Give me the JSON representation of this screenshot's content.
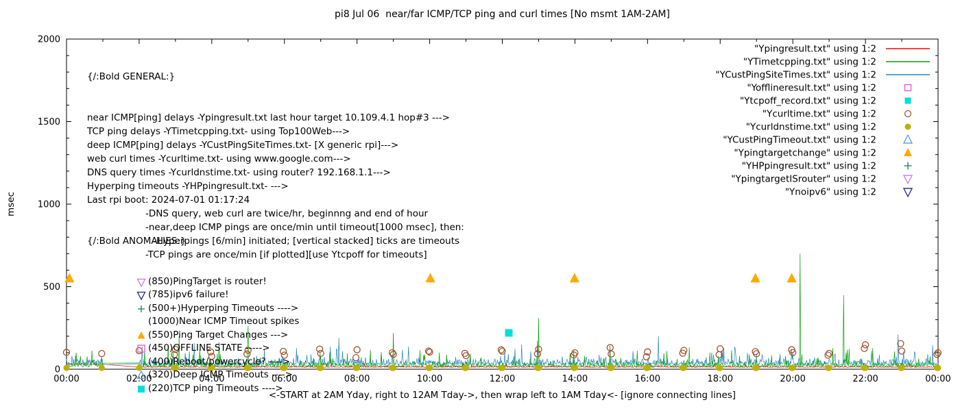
{
  "title": "pi8 Jul 06  near/far ICMP/TCP ping and curl times [No msmt 1AM-2AM]",
  "ylabel": "msec",
  "xlabel": "<-START at 2AM Yday, right to 12AM Tday->, then wrap left to 1AM Tday<- [ignore connecting lines]",
  "general": {
    "heading": "{/:Bold GENERAL:}",
    "lines": [
      {
        "text": "near ICMP[ping] delays -Ypingresult.txt last hour target 10.109.4.1 hop#3 --->",
        "indent": 0
      },
      {
        "text": "TCP ping delays -YTimetcpping.txt- using Top100Web--->",
        "indent": 0
      },
      {
        "text": "deep ICMP[ping] delays -YCustPingSiteTimes.txt- [X generic rpi]--->",
        "indent": 0
      },
      {
        "text": "web curl times -Ycurltime.txt- using www.google.com--->",
        "indent": 0
      },
      {
        "text": "DNS query times -Ycurldnstime.txt- using router? 192.168.1.1--->",
        "indent": 0
      },
      {
        "text": "Hyperping timeouts -YHPpingresult.txt- --->",
        "indent": 0
      },
      {
        "text": "Last rpi boot: 2024-07-01 01:17:24",
        "indent": 0
      },
      {
        "text": "-DNS query, web curl are twice/hr, beginnng and end of hour",
        "indent": 1
      },
      {
        "text": "-near,deep ICMP pings are once/min until timeout[1000 msec], then:",
        "indent": 1
      },
      {
        "text": "-Hyperpings [6/min] initiated; [vertical stacked] ticks are timeouts",
        "indent": 2
      },
      {
        "text": "-TCP pings are once/min [if plotted][use Ytcpoff for timeouts]",
        "indent": 1
      }
    ]
  },
  "anomalies": {
    "heading": "{/:Bold ANOMALIES:}",
    "items": [
      {
        "symbol": "triangle-down-open",
        "color": "#c77ae0",
        "text": "(850)PingTarget is router!"
      },
      {
        "symbol": "triangle-down-open",
        "color": "#202090",
        "text": "(785)ipv6 failure!"
      },
      {
        "symbol": "plus",
        "color": "#128060",
        "text": "(500+)Hyperping Timeouts ---->"
      },
      {
        "symbol": null,
        "color": null,
        "text": "(1000)Near ICMP Timeout spikes"
      },
      {
        "symbol": "triangle-up-filled",
        "color": "#ffaa00",
        "text": "(550)Ping Target Changes --->"
      },
      {
        "symbol": "square-open",
        "color": "#e54de5",
        "text": "(450)OFFLINE STATE ----->"
      },
      {
        "symbol": null,
        "color": null,
        "text": "(400)Reboot/powercycle? ---->"
      },
      {
        "symbol": "triangle-up-open",
        "color": "#5b9bd5",
        "text": "(320)Deep ICMP Timeouts ---->"
      },
      {
        "symbol": "square-filled",
        "color": "#00dede",
        "text": "(220)TCP ping Timeouts ---->"
      }
    ]
  },
  "legend": {
    "items": [
      {
        "label": "\"Ypingresult.txt\" using 1:2",
        "symbol": "line",
        "color": "#ff0000"
      },
      {
        "label": "\"YTimetcpping.txt\" using 1:2",
        "symbol": "line",
        "color": "#00a000"
      },
      {
        "label": "\"YCustPingSiteTimes.txt\" using 1:2",
        "symbol": "line",
        "color": "#2383c4"
      },
      {
        "label": "\"Yofflineresult.txt\" using 1:2",
        "symbol": "square-open",
        "color": "#e54de5",
        "size": 9
      },
      {
        "label": "\"Ytcpoff_record.txt\" using 1:2",
        "symbol": "square-filled",
        "color": "#00dede",
        "size": 9
      },
      {
        "label": "\"Ycurltime.txt\" using 1:2",
        "symbol": "circle-open",
        "color": "#a0522d",
        "size": 9
      },
      {
        "label": "\"Ycurldnstime.txt\" using 1:2",
        "symbol": "circle-filled",
        "color": "#bdb000",
        "size": 9
      },
      {
        "label": "\"YCustPingTimeout.txt\" using 1:2",
        "symbol": "triangle-up-open",
        "color": "#5b9bd5",
        "size": 11
      },
      {
        "label": "\"Ypingtargetchange\" using 1:2",
        "symbol": "triangle-up-filled",
        "color": "#ffaa00",
        "size": 11
      },
      {
        "label": "\"YHPpingresult.txt\" using 1:2",
        "symbol": "plus",
        "color": "#128060",
        "size": 11
      },
      {
        "label": "\"YpingtargetISrouter\" using 1:2",
        "symbol": "triangle-down-open",
        "color": "#c77ae0",
        "size": 11
      },
      {
        "label": "\"Ynoipv6\" using 1:2",
        "symbol": "triangle-down-open",
        "color": "#202090",
        "size": 11
      }
    ]
  },
  "chart_data": {
    "type": "line",
    "x_axis": {
      "ticks_major": [
        "00:00",
        "02:00",
        "04:00",
        "06:00",
        "08:00",
        "10:00",
        "12:00",
        "14:00",
        "16:00",
        "18:00",
        "20:00",
        "22:00",
        "00:00"
      ],
      "hours_span": 24,
      "minor_every_hours": 1
    },
    "y_axis": {
      "label": "msec",
      "ticks_major": [
        0,
        500,
        1000,
        1500,
        2000
      ],
      "minor_step": 100,
      "range": [
        0,
        2000
      ]
    },
    "gap_hours": [
      1,
      2
    ],
    "series": [
      {
        "name": "Ypingresult.txt",
        "color": "#ff0000",
        "base": 11,
        "noise": 8,
        "spike_prob": 0.03,
        "spike_max": 35,
        "seed": 101,
        "flat_until": 1,
        "flat_value": 30
      },
      {
        "name": "YCustPingSiteTimes.txt",
        "color": "#2383c4",
        "base": 24,
        "noise": 40,
        "spike_prob": 0.14,
        "spike_max": 130,
        "seed": 303,
        "big_spikes": [
          [
            7.5,
            190
          ],
          [
            16.3,
            200
          ],
          [
            22.9,
            210
          ]
        ]
      },
      {
        "name": "YTimetcpping.txt",
        "color": "#00a000",
        "base": 13,
        "noise": 28,
        "spike_prob": 0.12,
        "spike_max": 150,
        "seed": 202,
        "big_spikes": [
          [
            3.1,
            200
          ],
          [
            5.0,
            260
          ],
          [
            9.0,
            220
          ],
          [
            13.0,
            310
          ],
          [
            20.2,
            700
          ],
          [
            21.4,
            450
          ]
        ]
      }
    ],
    "markers": [
      {
        "name": "Ycurldnstime-dots",
        "shape": "circle-filled",
        "color": "#bdb000",
        "size": 9,
        "y": 8,
        "times": [
          0,
          0.97,
          2,
          2.97,
          3,
          3.97,
          4,
          4.97,
          5,
          5.97,
          6,
          6.97,
          7,
          7.97,
          8,
          8.97,
          9,
          9.97,
          10,
          10.97,
          11,
          11.97,
          12,
          12.97,
          13,
          13.97,
          14,
          14.97,
          15,
          15.97,
          16,
          16.97,
          17,
          17.97,
          18,
          18.97,
          19,
          19.97,
          20,
          20.97,
          21,
          21.97,
          22,
          22.97,
          23,
          23.97,
          24
        ]
      },
      {
        "name": "Ycurltime-circles",
        "shape": "circle-open",
        "color": "#a0522d",
        "size": 9,
        "times": [
          0,
          0.97,
          2,
          2.97,
          3,
          3.97,
          4,
          4.97,
          5,
          5.97,
          6,
          6.97,
          7,
          7.97,
          8,
          8.97,
          9,
          9.97,
          10,
          10.97,
          11,
          11.97,
          12,
          12.97,
          13,
          13.97,
          14,
          14.97,
          15,
          15.97,
          16,
          16.97,
          17,
          17.97,
          18,
          18.97,
          19,
          19.97,
          20,
          20.97,
          21,
          21.97,
          22,
          22.97,
          23,
          23.97,
          24
        ],
        "values": [
          102,
          95,
          112,
          88,
          120,
          105,
          78,
          92,
          115,
          108,
          85,
          122,
          96,
          70,
          118,
          100,
          90,
          110,
          104,
          96,
          82,
          117,
          109,
          93,
          121,
          86,
          99,
          131,
          92,
          75,
          105,
          97,
          114,
          88,
          124,
          107,
          94,
          118,
          101,
          85,
          96,
          126,
          148,
          155,
          110,
          90,
          100
        ]
      },
      {
        "name": "Ypingtargetchange-markers",
        "shape": "triangle-up-filled",
        "color": "#ffaa00",
        "size": 13,
        "points": [
          [
            0.08,
            550
          ],
          [
            10.02,
            550
          ],
          [
            13.99,
            550
          ],
          [
            18.97,
            550
          ],
          [
            19.97,
            550
          ]
        ]
      },
      {
        "name": "Ytcpoff-markers",
        "shape": "square-filled",
        "color": "#00dede",
        "size": 11,
        "points": [
          [
            12.18,
            220
          ]
        ]
      }
    ]
  }
}
